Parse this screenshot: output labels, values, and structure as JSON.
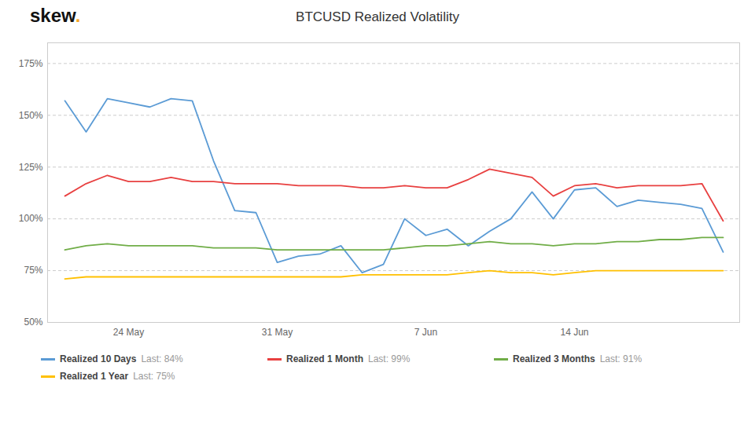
{
  "chart_data": {
    "type": "line",
    "title": "BTCUSD Realized Volatility",
    "logo": "skew.",
    "categories": [
      null,
      null,
      null,
      "24 May",
      null,
      null,
      null,
      null,
      null,
      null,
      "31 May",
      null,
      null,
      null,
      null,
      null,
      null,
      "7 Jun",
      null,
      null,
      null,
      null,
      null,
      null,
      "14 Jun",
      null,
      null,
      null,
      null,
      null,
      null,
      null
    ],
    "series": [
      {
        "name": "Realized 10 Days",
        "color": "#5b9bd5",
        "last": "Last: 84%",
        "values": [
          157,
          142,
          158,
          156,
          154,
          158,
          157,
          128,
          104,
          103,
          79,
          82,
          83,
          87,
          74,
          78,
          100,
          92,
          95,
          87,
          94,
          100,
          113,
          100,
          114,
          115,
          106,
          109,
          108,
          107,
          105,
          84
        ]
      },
      {
        "name": "Realized 1 Month",
        "color": "#e84040",
        "last": "Last: 99%",
        "values": [
          111,
          117,
          121,
          118,
          118,
          120,
          118,
          118,
          117,
          117,
          117,
          116,
          116,
          116,
          115,
          115,
          116,
          115,
          115,
          119,
          124,
          122,
          120,
          111,
          116,
          117,
          115,
          116,
          116,
          116,
          117,
          99
        ]
      },
      {
        "name": "Realized 3 Months",
        "color": "#70ad47",
        "last": "Last: 91%",
        "values": [
          85,
          87,
          88,
          87,
          87,
          87,
          87,
          86,
          86,
          86,
          85,
          85,
          85,
          85,
          85,
          85,
          86,
          87,
          87,
          88,
          89,
          88,
          88,
          87,
          88,
          88,
          89,
          89,
          90,
          90,
          91,
          91
        ]
      },
      {
        "name": "Realized 1 Year",
        "color": "#ffc000",
        "last": "Last: 75%",
        "values": [
          71,
          72,
          72,
          72,
          72,
          72,
          72,
          72,
          72,
          72,
          72,
          72,
          72,
          72,
          73,
          73,
          73,
          73,
          73,
          74,
          75,
          74,
          74,
          73,
          74,
          75,
          75,
          75,
          75,
          75,
          75,
          75
        ]
      }
    ],
    "ylim": [
      50,
      185
    ],
    "yticks": [
      {
        "value": 50,
        "label": "50%"
      },
      {
        "value": 75,
        "label": "75%"
      },
      {
        "value": 100,
        "label": "100%"
      },
      {
        "value": 125,
        "label": "125%"
      },
      {
        "value": 150,
        "label": "150%"
      },
      {
        "value": 175,
        "label": "175%"
      }
    ],
    "grid": true
  }
}
